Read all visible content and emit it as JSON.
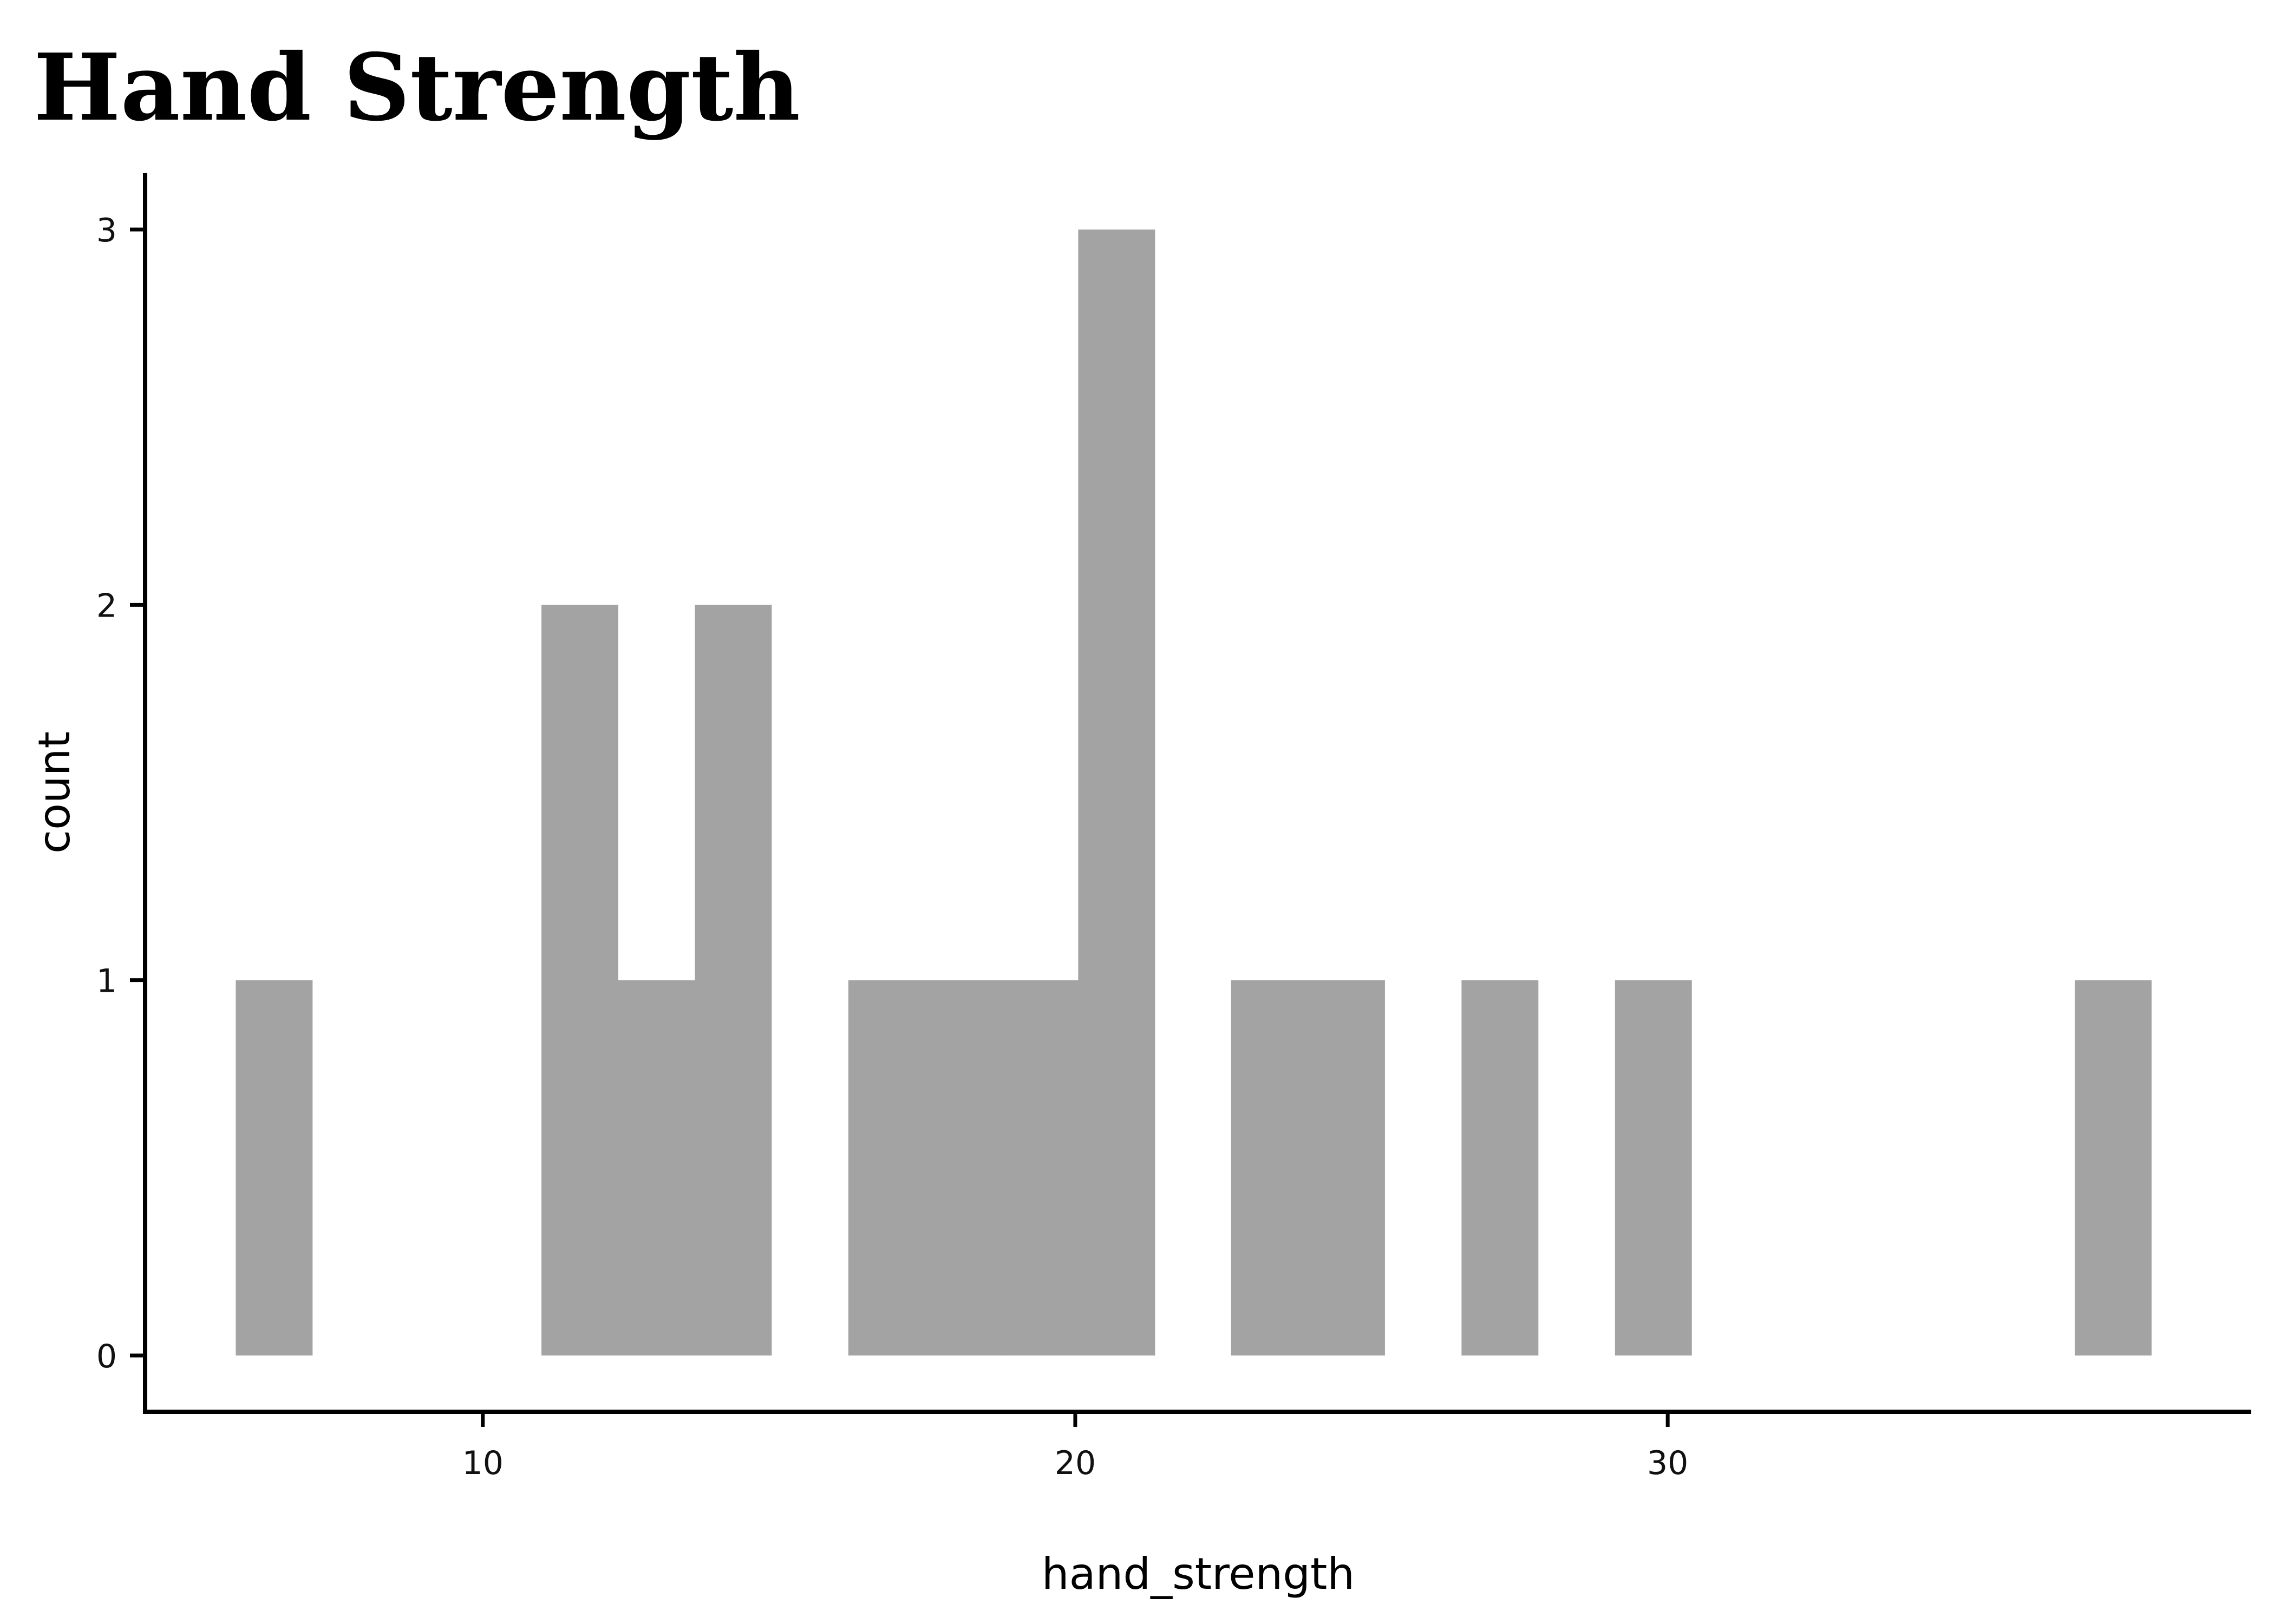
{
  "chart_data": {
    "type": "bar",
    "title": "Hand Strength",
    "xlabel": "hand_strength",
    "ylabel": "count",
    "xlim": [
      4.3,
      39.85
    ],
    "ylim": [
      -0.15,
      3.15
    ],
    "x_ticks": [
      10,
      20,
      30
    ],
    "y_ticks": [
      0,
      1,
      2,
      3
    ],
    "grid": false,
    "bar_color": "#a3a3a3",
    "bin_width": 1.2937,
    "bins": [
      {
        "x0": 5.83,
        "x1": 7.12,
        "count": 1
      },
      {
        "x0": 10.99,
        "x1": 12.28,
        "count": 2
      },
      {
        "x0": 12.28,
        "x1": 13.58,
        "count": 1
      },
      {
        "x0": 13.58,
        "x1": 14.87,
        "count": 2
      },
      {
        "x0": 16.17,
        "x1": 17.46,
        "count": 1
      },
      {
        "x0": 17.46,
        "x1": 18.75,
        "count": 1
      },
      {
        "x0": 18.75,
        "x1": 20.05,
        "count": 1
      },
      {
        "x0": 20.05,
        "x1": 21.34,
        "count": 3
      },
      {
        "x0": 22.63,
        "x1": 23.93,
        "count": 1
      },
      {
        "x0": 23.93,
        "x1": 25.22,
        "count": 1
      },
      {
        "x0": 26.52,
        "x1": 27.81,
        "count": 1
      },
      {
        "x0": 29.11,
        "x1": 30.4,
        "count": 1
      },
      {
        "x0": 36.87,
        "x1": 38.16,
        "count": 1
      }
    ]
  }
}
